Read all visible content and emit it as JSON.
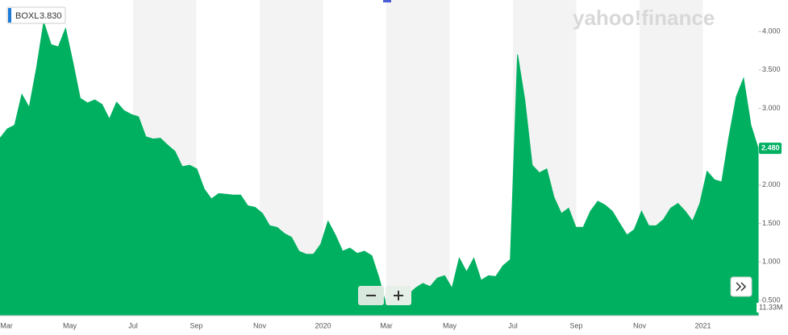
{
  "chart_data": {
    "type": "area",
    "ticker": "BOXL",
    "ticker_price": "3.830",
    "watermark": "yahoo!finance",
    "volume_label": "11.33M",
    "current_price": {
      "value": 2.48,
      "label": "2.480"
    },
    "color": "#00b061",
    "x_labels": [
      "Mar",
      "May",
      "Jul",
      "Sep",
      "Nov",
      "2020",
      "Mar",
      "May",
      "Jul",
      "Sep",
      "Nov",
      "2021"
    ],
    "ylim": [
      0.3,
      4.41
    ],
    "yticks": [
      {
        "value": 0.5,
        "label": "0.500"
      },
      {
        "value": 1,
        "label": "1.000"
      },
      {
        "value": 1.5,
        "label": "1.500"
      },
      {
        "value": 2,
        "label": "2.000"
      },
      {
        "value": 2.5,
        "label": "2.500"
      },
      {
        "value": 3,
        "label": "3.000"
      },
      {
        "value": 3.5,
        "label": "3.500"
      },
      {
        "value": 4,
        "label": "4.000"
      }
    ],
    "values": [
      2.61,
      2.73,
      2.78,
      3.18,
      3.01,
      3.52,
      4.12,
      3.83,
      3.8,
      4.04,
      3.6,
      3.13,
      3.07,
      3.11,
      3.05,
      2.86,
      3.08,
      2.97,
      2.92,
      2.89,
      2.63,
      2.6,
      2.61,
      2.52,
      2.44,
      2.24,
      2.26,
      2.21,
      1.95,
      1.82,
      1.89,
      1.88,
      1.87,
      1.87,
      1.73,
      1.71,
      1.63,
      1.47,
      1.45,
      1.37,
      1.32,
      1.14,
      1.1,
      1.1,
      1.23,
      1.53,
      1.35,
      1.14,
      1.18,
      1.11,
      1.14,
      1.08,
      0.79,
      0.43,
      0.45,
      0.58,
      0.57,
      0.66,
      0.72,
      0.68,
      0.79,
      0.82,
      0.66,
      1.05,
      0.87,
      1.05,
      0.76,
      0.82,
      0.81,
      0.95,
      1.03,
      3.7,
      3.1,
      2.26,
      2.16,
      2.21,
      1.84,
      1.63,
      1.7,
      1.45,
      1.45,
      1.66,
      1.79,
      1.74,
      1.66,
      1.5,
      1.35,
      1.42,
      1.66,
      1.47,
      1.47,
      1.55,
      1.7,
      1.76,
      1.66,
      1.53,
      1.76,
      2.18,
      2.07,
      2.04,
      2.63,
      3.15,
      3.39,
      2.78,
      2.48
    ]
  }
}
